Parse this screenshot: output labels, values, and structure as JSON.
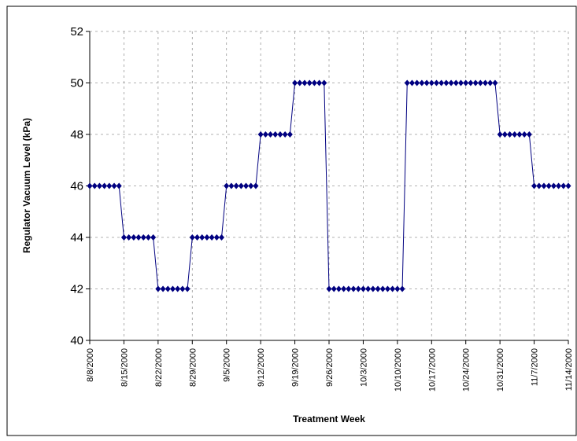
{
  "chart_data": {
    "type": "line",
    "y_label": "Regulator Vacuum Level (kPa)",
    "x_label": "Treatment Week",
    "x": [
      "8/8/2000",
      "8/9/2000",
      "8/10/2000",
      "8/11/2000",
      "8/12/2000",
      "8/13/2000",
      "8/14/2000",
      "8/15/2000",
      "8/16/2000",
      "8/17/2000",
      "8/18/2000",
      "8/19/2000",
      "8/20/2000",
      "8/21/2000",
      "8/22/2000",
      "8/23/2000",
      "8/24/2000",
      "8/25/2000",
      "8/26/2000",
      "8/27/2000",
      "8/28/2000",
      "8/29/2000",
      "8/30/2000",
      "8/31/2000",
      "9/1/2000",
      "9/2/2000",
      "9/3/2000",
      "9/4/2000",
      "9/5/2000",
      "9/6/2000",
      "9/7/2000",
      "9/8/2000",
      "9/9/2000",
      "9/10/2000",
      "9/11/2000",
      "9/12/2000",
      "9/13/2000",
      "9/14/2000",
      "9/15/2000",
      "9/16/2000",
      "9/17/2000",
      "9/18/2000",
      "9/19/2000",
      "9/20/2000",
      "9/21/2000",
      "9/22/2000",
      "9/23/2000",
      "9/24/2000",
      "9/25/2000",
      "9/26/2000",
      "9/27/2000",
      "9/28/2000",
      "9/29/2000",
      "9/30/2000",
      "10/1/2000",
      "10/2/2000",
      "10/3/2000",
      "10/4/2000",
      "10/5/2000",
      "10/6/2000",
      "10/7/2000",
      "10/8/2000",
      "10/9/2000",
      "10/10/2000",
      "10/11/2000",
      "10/12/2000",
      "10/13/2000",
      "10/14/2000",
      "10/15/2000",
      "10/16/2000",
      "10/17/2000",
      "10/18/2000",
      "10/19/2000",
      "10/20/2000",
      "10/21/2000",
      "10/22/2000",
      "10/23/2000",
      "10/24/2000",
      "10/25/2000",
      "10/26/2000",
      "10/27/2000",
      "10/28/2000",
      "10/29/2000",
      "10/30/2000",
      "10/31/2000",
      "11/1/2000",
      "11/2/2000",
      "11/3/2000",
      "11/4/2000",
      "11/5/2000",
      "11/6/2000",
      "11/7/2000",
      "11/8/2000",
      "11/9/2000",
      "11/10/2000",
      "11/11/2000",
      "11/12/2000",
      "11/13/2000",
      "11/14/2000"
    ],
    "series": [
      {
        "color": "#000080",
        "values": [
          46,
          46,
          46,
          46,
          46,
          46,
          46,
          44,
          44,
          44,
          44,
          44,
          44,
          44,
          42,
          42,
          42,
          42,
          42,
          42,
          42,
          44,
          44,
          44,
          44,
          44,
          44,
          44,
          46,
          46,
          46,
          46,
          46,
          46,
          46,
          48,
          48,
          48,
          48,
          48,
          48,
          48,
          50,
          50,
          50,
          50,
          50,
          50,
          50,
          42,
          42,
          42,
          42,
          42,
          42,
          42,
          42,
          42,
          42,
          42,
          42,
          42,
          42,
          42,
          42,
          50,
          50,
          50,
          50,
          50,
          50,
          50,
          50,
          50,
          50,
          50,
          50,
          50,
          50,
          50,
          50,
          50,
          50,
          50,
          48,
          48,
          48,
          48,
          48,
          48,
          48,
          46,
          46,
          46,
          46,
          46,
          46,
          46,
          46
        ]
      }
    ],
    "xticks": [
      "8/8/2000",
      "8/15/2000",
      "8/22/2000",
      "8/29/2000",
      "9/5/2000",
      "9/12/2000",
      "9/19/2000",
      "9/26/2000",
      "10/3/2000",
      "10/10/2000",
      "10/17/2000",
      "10/24/2000",
      "10/31/2000",
      "11/7/2000",
      "11/14/2000"
    ],
    "ylim": [
      40,
      52
    ],
    "yticks": [
      40,
      42,
      44,
      46,
      48,
      50,
      52
    ],
    "grid": true
  }
}
